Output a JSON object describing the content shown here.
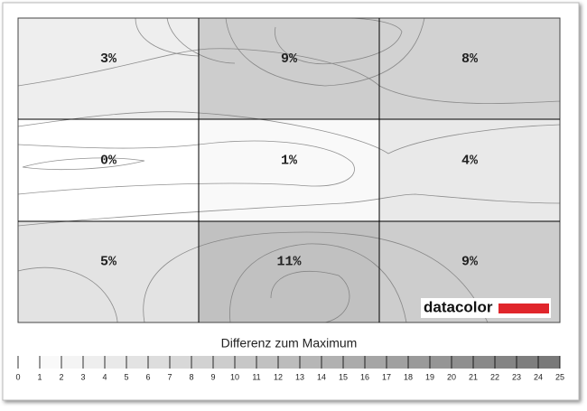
{
  "chart_data": {
    "type": "heatmap",
    "values": [
      [
        3,
        9,
        8
      ],
      [
        0,
        1,
        4
      ],
      [
        5,
        11,
        9
      ]
    ],
    "value_labels": [
      [
        "3%",
        "9%",
        "8%"
      ],
      [
        "0%",
        "1%",
        "4%"
      ],
      [
        "5%",
        "11%",
        "9%"
      ]
    ],
    "colorbar_title": "Differenz zum Maximum",
    "clim": [
      0,
      25
    ],
    "colorbar_ticks": [
      0,
      1,
      2,
      3,
      4,
      5,
      6,
      7,
      8,
      9,
      10,
      11,
      12,
      13,
      14,
      15,
      16,
      17,
      18,
      19,
      20,
      21,
      22,
      23,
      24,
      25
    ],
    "logo": "datacolor"
  }
}
